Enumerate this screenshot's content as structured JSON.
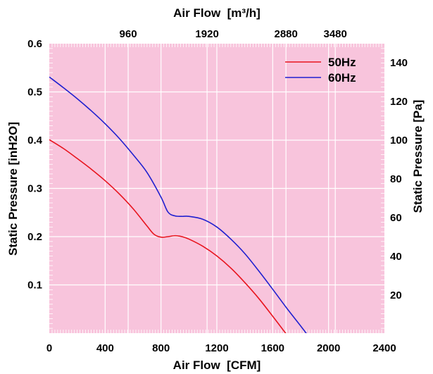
{
  "chart_data": {
    "type": "line",
    "x_bottom": {
      "label": "Air Flow  [CFM]",
      "ticks": [
        0,
        400,
        800,
        1200,
        1600,
        2000,
        2400
      ],
      "tick_labels": [
        "0",
        "400",
        "800",
        "1200",
        "1600",
        "2000",
        "2400"
      ],
      "range": [
        0,
        2400
      ]
    },
    "x_top": {
      "label": "Air Flow  [m³/h]",
      "ticks_cfm": [
        565,
        1130,
        1695,
        2048
      ],
      "tick_labels": [
        "960",
        "1920",
        "2880",
        "3480"
      ]
    },
    "y_left": {
      "label": "Static Pressure [inH2O]",
      "ticks": [
        0.1,
        0.2,
        0.3,
        0.4,
        0.5,
        0.6
      ],
      "tick_labels": [
        "0.1",
        "0.2",
        "0.3",
        "0.4",
        "0.5",
        "0.6"
      ],
      "range": [
        0,
        0.6
      ]
    },
    "y_right": {
      "label": "Static Pressure [Pa]",
      "ticks_inh2o": [
        0.0803,
        0.1606,
        0.2409,
        0.3212,
        0.4015,
        0.4818,
        0.5621
      ],
      "tick_labels": [
        "20",
        "40",
        "60",
        "80",
        "100",
        "120",
        "140"
      ]
    },
    "grid": true,
    "legend": "top-right",
    "background_color": "#f8c4dc",
    "grid_color": "#ffffff",
    "series": [
      {
        "name": "50Hz",
        "color": "#e8141e",
        "x": [
          0,
          100,
          200,
          300,
          400,
          500,
          600,
          700,
          750,
          800,
          850,
          900,
          950,
          1000,
          1100,
          1200,
          1300,
          1400,
          1500,
          1600,
          1700
        ],
        "y": [
          0.401,
          0.383,
          0.362,
          0.34,
          0.316,
          0.289,
          0.258,
          0.222,
          0.205,
          0.199,
          0.2,
          0.202,
          0.2,
          0.195,
          0.18,
          0.16,
          0.135,
          0.105,
          0.072,
          0.035,
          -0.003
        ]
      },
      {
        "name": "60Hz",
        "color": "#2020d0",
        "x": [
          0,
          100,
          200,
          300,
          400,
          500,
          600,
          700,
          800,
          850,
          900,
          950,
          1000,
          1100,
          1200,
          1300,
          1400,
          1500,
          1600,
          1700,
          1800,
          1850
        ],
        "y": [
          0.531,
          0.509,
          0.486,
          0.461,
          0.434,
          0.404,
          0.37,
          0.333,
          0.282,
          0.251,
          0.243,
          0.242,
          0.242,
          0.236,
          0.22,
          0.195,
          0.165,
          0.129,
          0.091,
          0.052,
          0.015,
          -0.004
        ]
      }
    ]
  }
}
